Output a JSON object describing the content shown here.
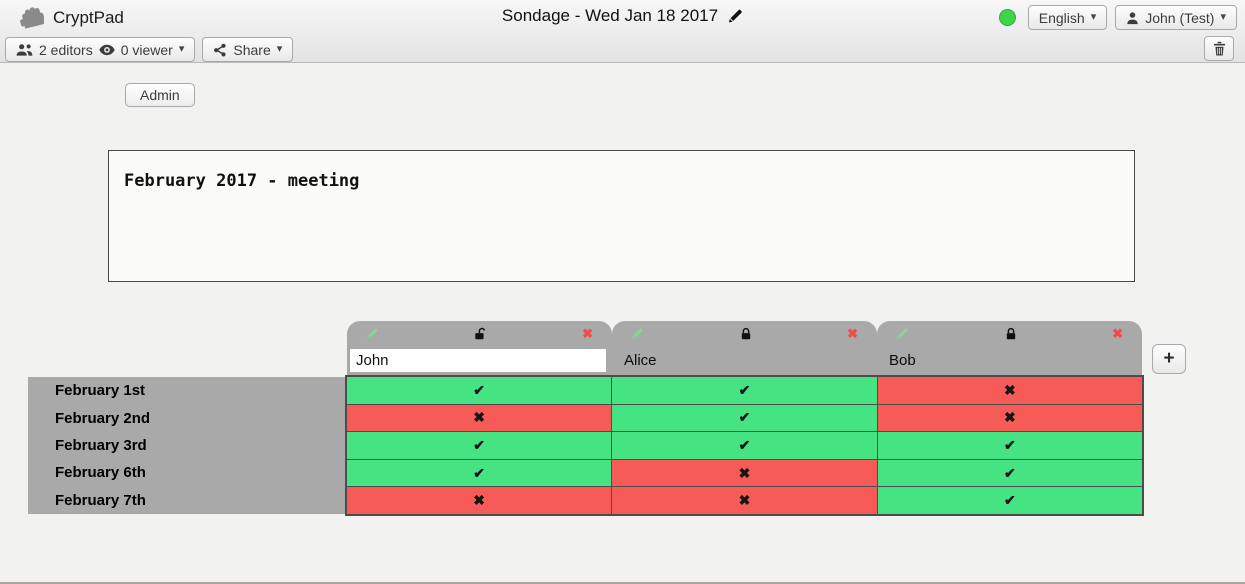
{
  "topbar": {
    "app_name": "CryptPad",
    "doc_title": "Sondage - Wed Jan 18 2017",
    "language_label": "English",
    "user_label": "John (Test)"
  },
  "toolbar": {
    "editors_label": "2 editors",
    "viewers_label": "0 viewer",
    "share_label": "Share"
  },
  "admin": {
    "label": "Admin"
  },
  "description": "February 2017 - meeting",
  "icons": {
    "caret_down": "▾",
    "delete_cross": "✖"
  },
  "status": {
    "color": "#3FD54A"
  },
  "poll": {
    "add_column_label": "+",
    "columns": [
      {
        "name": "John",
        "editable": true,
        "locked": false
      },
      {
        "name": "Alice",
        "editable": false,
        "locked": true
      },
      {
        "name": "Bob",
        "editable": false,
        "locked": true
      }
    ],
    "rows": [
      "February 1st",
      "February 2nd",
      "February 3rd",
      "February 6th",
      "February 7th"
    ],
    "votes": [
      [
        "yes",
        "yes",
        "no"
      ],
      [
        "no",
        "yes",
        "no"
      ],
      [
        "yes",
        "yes",
        "yes"
      ],
      [
        "yes",
        "no",
        "yes"
      ],
      [
        "no",
        "no",
        "yes"
      ]
    ],
    "glyphs": {
      "yes": "✔",
      "no": "✖"
    },
    "colors": {
      "yes": "#46E382",
      "no": "#F75B57",
      "header": "#A9A9A9"
    }
  }
}
